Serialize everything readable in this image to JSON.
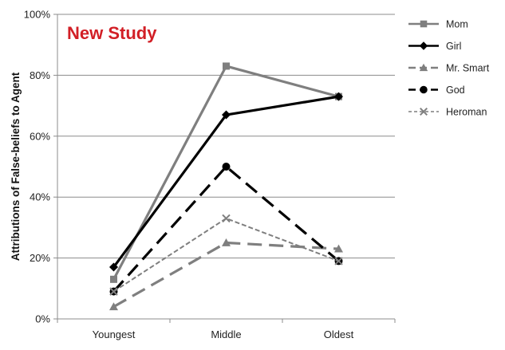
{
  "chart_data": {
    "type": "line",
    "title": "New Study",
    "title_color": "#d21f26",
    "xlabel": "",
    "ylabel": "Attributions of False-beliefs to Agent",
    "categories": [
      "Youngest",
      "Middle",
      "Oldest"
    ],
    "ylim": [
      0,
      100
    ],
    "yticks": [
      "0%",
      "20%",
      "40%",
      "60%",
      "80%",
      "100%"
    ],
    "ytick_values": [
      0,
      20,
      40,
      60,
      80,
      100
    ],
    "grid": "horizontal",
    "legend_position": "right",
    "series": [
      {
        "name": "Mom",
        "values": [
          13,
          83,
          73
        ],
        "color": "#7f7f7f",
        "marker": "square",
        "dash": "solid"
      },
      {
        "name": "Girl",
        "values": [
          17,
          67,
          73
        ],
        "color": "#000000",
        "marker": "diamond",
        "dash": "solid"
      },
      {
        "name": "Mr. Smart",
        "values": [
          4,
          25,
          23
        ],
        "color": "#7f7f7f",
        "marker": "triangle",
        "dash": "longdash"
      },
      {
        "name": "God",
        "values": [
          9,
          50,
          19
        ],
        "color": "#000000",
        "marker": "circle",
        "dash": "longdash"
      },
      {
        "name": "Heroman",
        "values": [
          9,
          33,
          19
        ],
        "color": "#7f7f7f",
        "marker": "x",
        "dash": "shortdash"
      }
    ]
  }
}
